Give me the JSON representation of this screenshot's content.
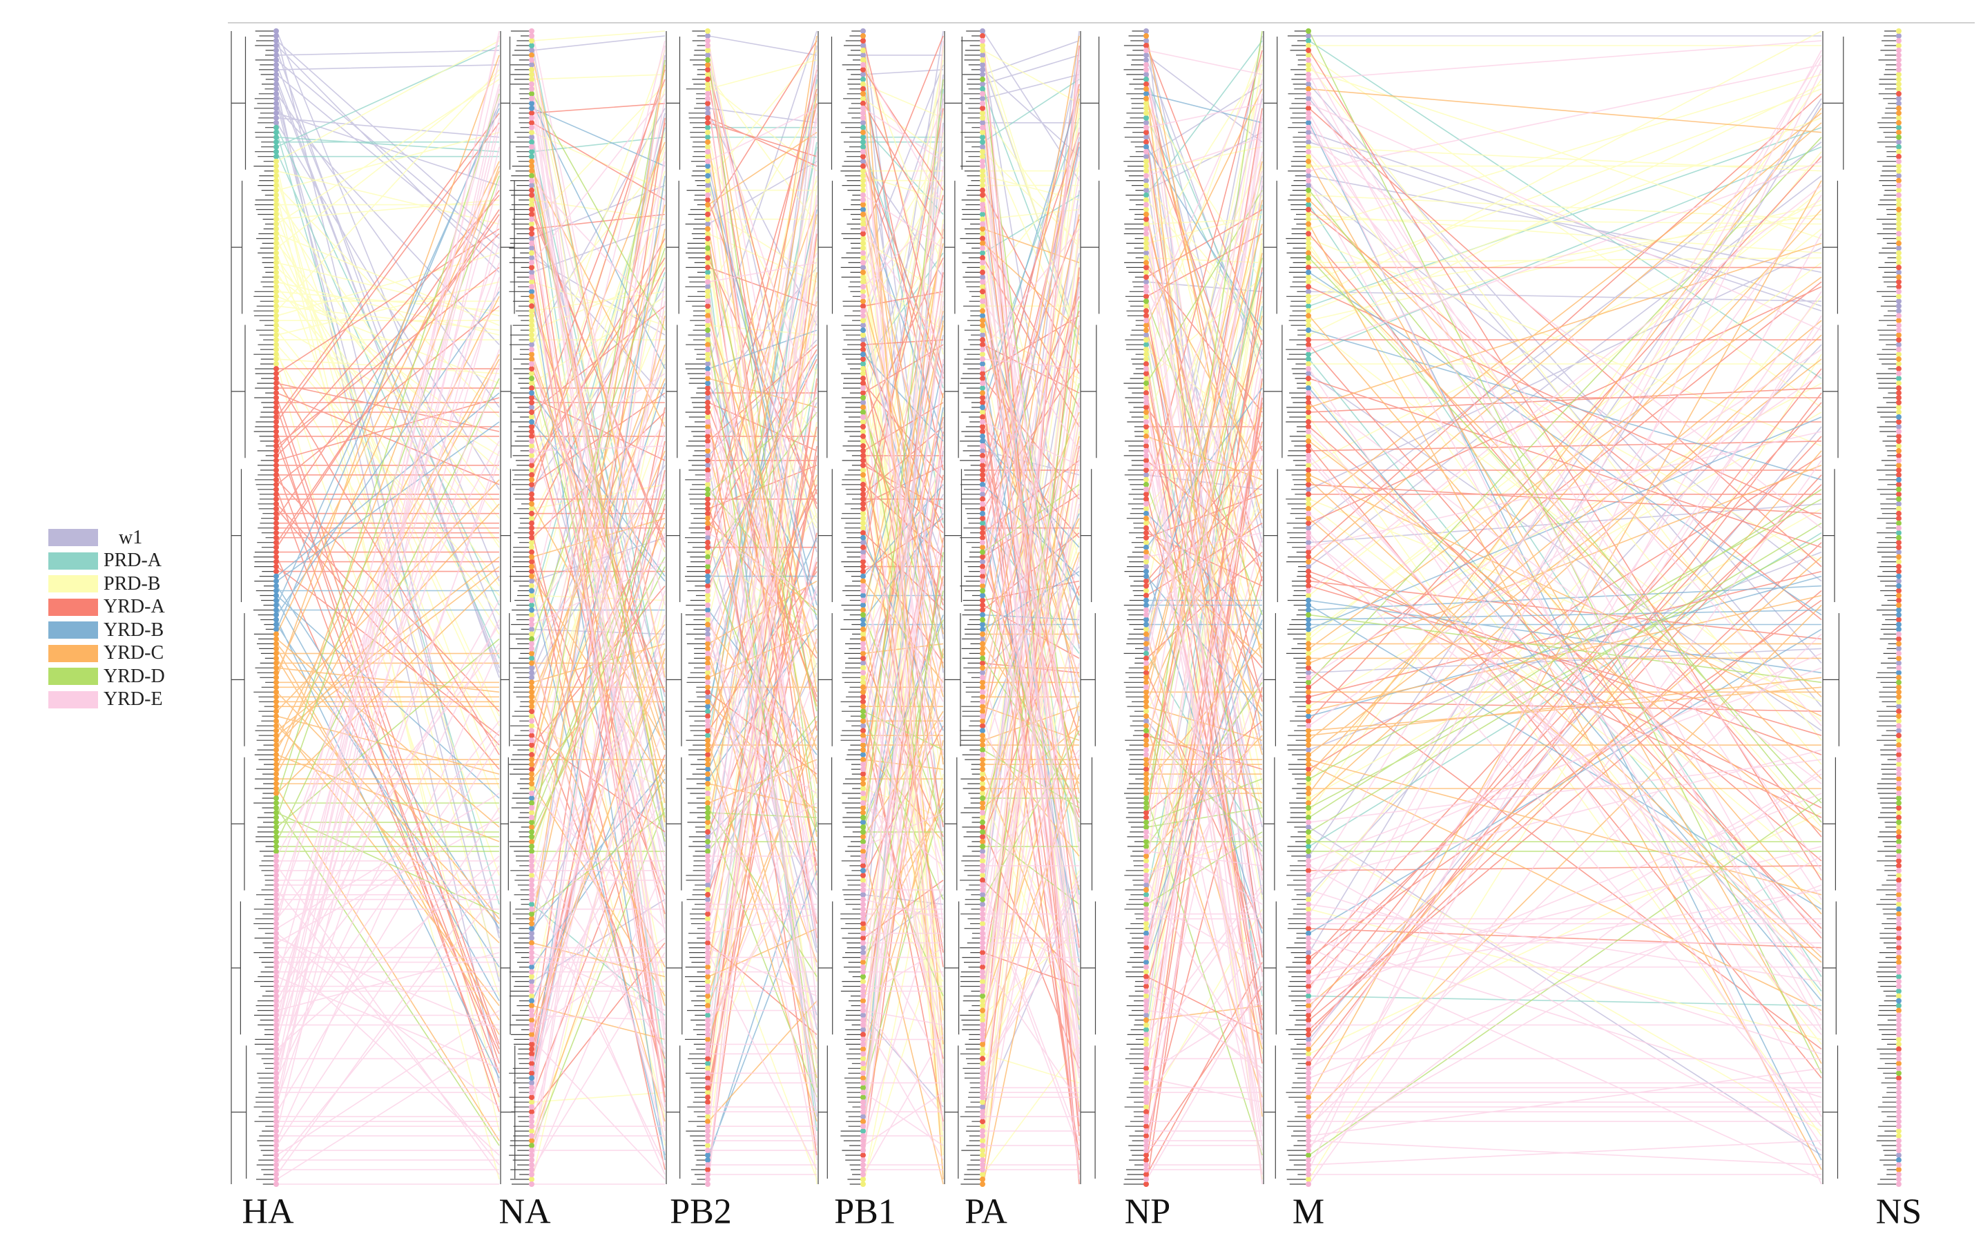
{
  "legend": {
    "items": [
      {
        "label": "w1",
        "color": "#bcb8d9"
      },
      {
        "label": "PRD-A",
        "color": "#8ed3c7"
      },
      {
        "label": "PRD-B",
        "color": "#fdfdb2"
      },
      {
        "label": "YRD-A",
        "color": "#f88072"
      },
      {
        "label": "YRD-B",
        "color": "#80b1d3"
      },
      {
        "label": "YRD-C",
        "color": "#fdb462"
      },
      {
        "label": "YRD-D",
        "color": "#b3de69"
      },
      {
        "label": "YRD-E",
        "color": "#fbcde4"
      }
    ]
  },
  "segments": [
    {
      "label": "HA"
    },
    {
      "label": "NA"
    },
    {
      "label": "PB2"
    },
    {
      "label": "PB1"
    },
    {
      "label": "PA"
    },
    {
      "label": "NP"
    },
    {
      "label": "M"
    },
    {
      "label": "NS"
    }
  ]
}
